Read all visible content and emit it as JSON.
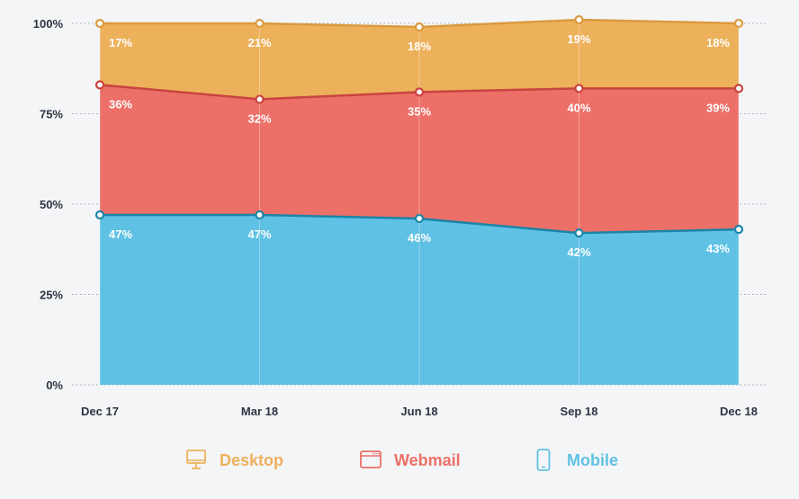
{
  "chart_data": {
    "type": "area",
    "stacked": true,
    "percent": true,
    "categories": [
      "Dec 17",
      "Mar 18",
      "Jun 18",
      "Sep 18",
      "Dec 18"
    ],
    "y_ticks": [
      "0%",
      "25%",
      "50%",
      "75%",
      "100%"
    ],
    "ylim": [
      0,
      100
    ],
    "grid": "dotted-horizontal",
    "legend_position": "bottom",
    "series": [
      {
        "name": "Mobile",
        "color": "#5fc1e4",
        "line_color": "#1b84a8",
        "icon": "mobile-phone-icon",
        "values": [
          47,
          47,
          46,
          42,
          43
        ],
        "labels": [
          "47%",
          "47%",
          "46%",
          "42%",
          "43%"
        ]
      },
      {
        "name": "Webmail",
        "color": "#ec7068",
        "line_color": "#c9443f",
        "icon": "browser-window-icon",
        "values": [
          36,
          32,
          35,
          40,
          39
        ],
        "labels": [
          "36%",
          "32%",
          "35%",
          "40%",
          "39%"
        ]
      },
      {
        "name": "Desktop",
        "color": "#edb15b",
        "line_color": "#db9a3f",
        "icon": "desktop-monitor-icon",
        "values": [
          17,
          21,
          18,
          19,
          18
        ],
        "labels": [
          "17%",
          "21%",
          "18%",
          "19%",
          "18%"
        ]
      }
    ]
  },
  "legend": {
    "items": [
      {
        "label": "Desktop",
        "color": "#edb15b",
        "icon": "desktop-monitor-icon"
      },
      {
        "label": "Webmail",
        "color": "#ec7068",
        "icon": "browser-window-icon"
      },
      {
        "label": "Mobile",
        "color": "#5fc1e4",
        "icon": "mobile-phone-icon"
      }
    ]
  }
}
